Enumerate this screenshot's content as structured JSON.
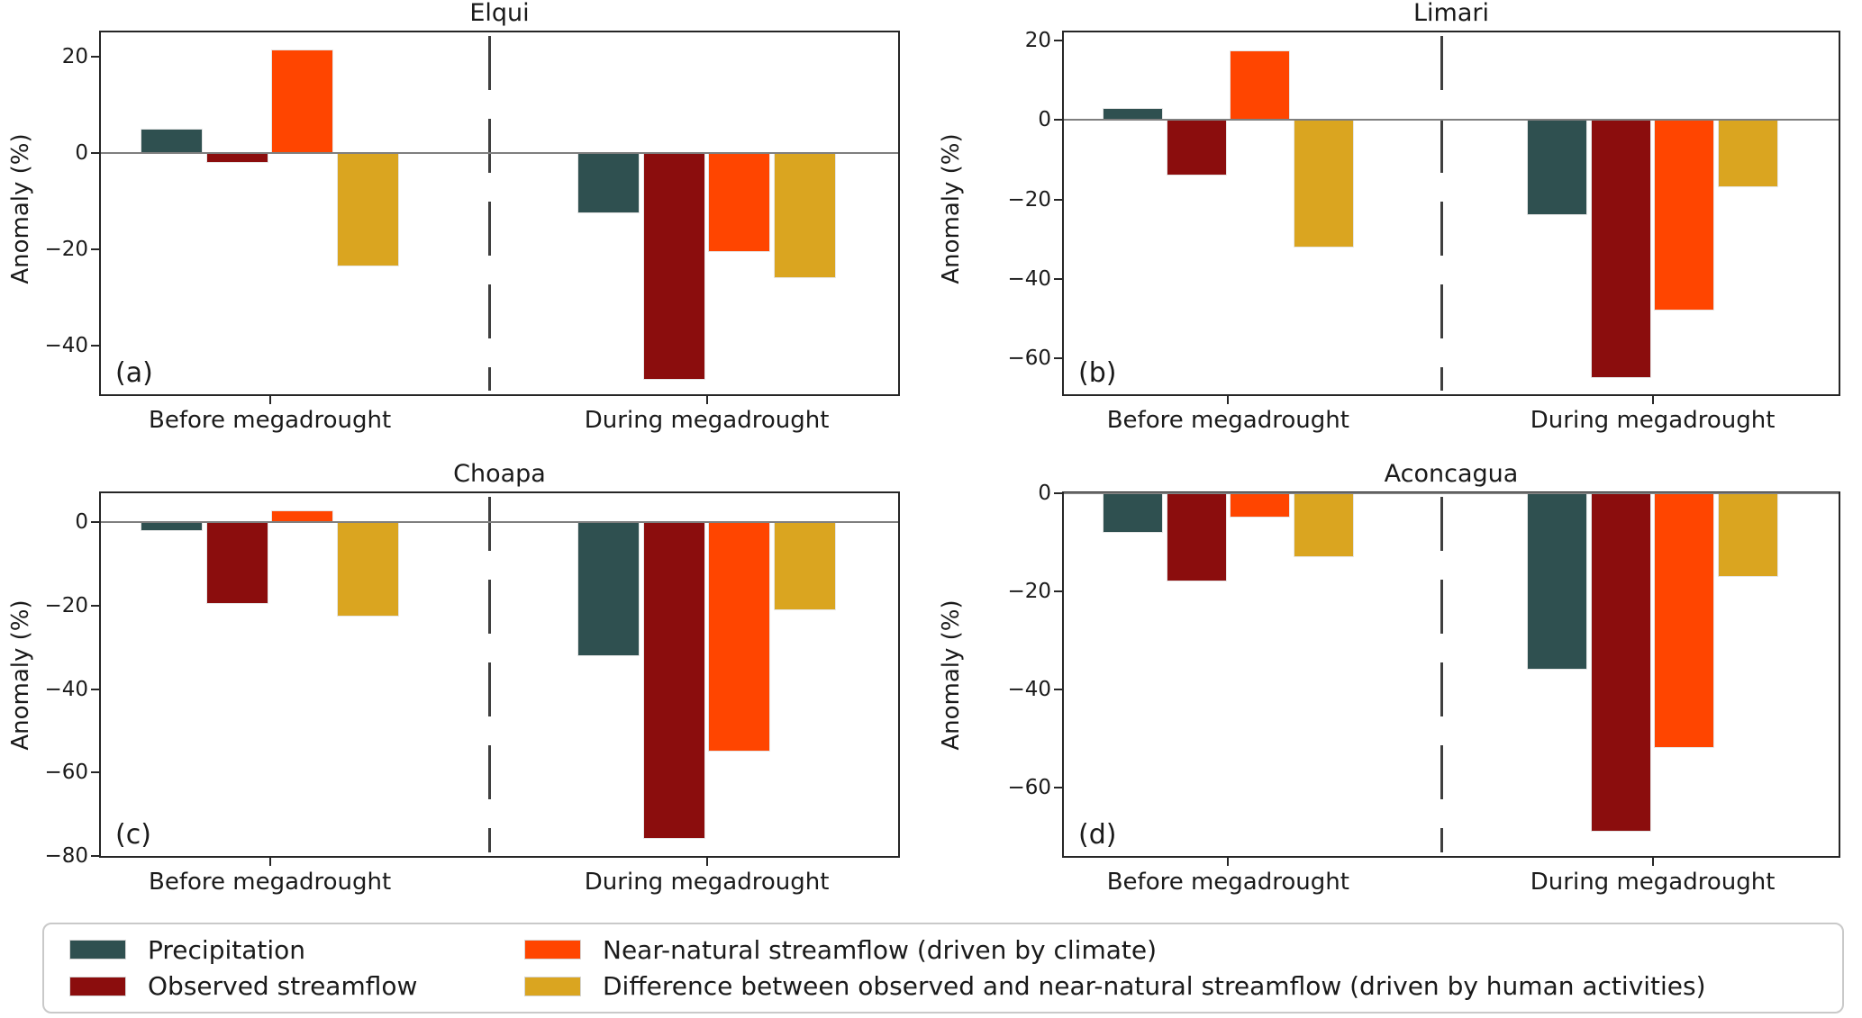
{
  "ylabel": "Anomaly (%)",
  "chart_data": [
    {
      "type": "bar",
      "label": "(a)",
      "title": "Elqui",
      "xlabel": "",
      "ylabel": "Anomaly (%)",
      "categories": [
        "Before megadrought",
        "During megadrought"
      ],
      "ylim": [
        -50,
        25
      ],
      "yticks": [
        20,
        0,
        -20,
        -40
      ],
      "grid": false,
      "legend_position": "bottom",
      "series": [
        {
          "name": "Precipitation",
          "color": "#2F5050",
          "values": [
            5,
            -12.5
          ]
        },
        {
          "name": "Observed streamflow",
          "color": "#8B0D0D",
          "values": [
            -2,
            -47
          ]
        },
        {
          "name": "Near-natural streamflow (driven by climate)",
          "color": "#FF4500",
          "values": [
            21.5,
            -20.5
          ]
        },
        {
          "name": "Difference between observed and near-natural streamflow (driven by human activities)",
          "color": "#DAA520",
          "values": [
            -23.5,
            -26
          ]
        }
      ]
    },
    {
      "type": "bar",
      "label": "(b)",
      "title": "Limari",
      "xlabel": "",
      "ylabel": "Anomaly (%)",
      "categories": [
        "Before megadrought",
        "During megadrought"
      ],
      "ylim": [
        -69,
        22
      ],
      "yticks": [
        20,
        0,
        -20,
        -40,
        -60
      ],
      "grid": false,
      "legend_position": "bottom",
      "series": [
        {
          "name": "Precipitation",
          "color": "#2F5050",
          "values": [
            3,
            -24
          ]
        },
        {
          "name": "Observed streamflow",
          "color": "#8B0D0D",
          "values": [
            -14,
            -65
          ]
        },
        {
          "name": "Near-natural streamflow (driven by climate)",
          "color": "#FF4500",
          "values": [
            17.5,
            -48
          ]
        },
        {
          "name": "Difference between observed and near-natural streamflow (driven by human activities)",
          "color": "#DAA520",
          "values": [
            -32,
            -17
          ]
        }
      ]
    },
    {
      "type": "bar",
      "label": "(c)",
      "title": "Choapa",
      "xlabel": "",
      "ylabel": "Anomaly (%)",
      "categories": [
        "Before megadrought",
        "During megadrought"
      ],
      "ylim": [
        -80,
        7
      ],
      "yticks": [
        0,
        -20,
        -40,
        -60,
        -80
      ],
      "grid": false,
      "legend_position": "bottom",
      "series": [
        {
          "name": "Precipitation",
          "color": "#2F5050",
          "values": [
            -2,
            -32
          ]
        },
        {
          "name": "Observed streamflow",
          "color": "#8B0D0D",
          "values": [
            -19.5,
            -76
          ]
        },
        {
          "name": "Near-natural streamflow (driven by climate)",
          "color": "#FF4500",
          "values": [
            3,
            -55
          ]
        },
        {
          "name": "Difference between observed and near-natural streamflow (driven by human activities)",
          "color": "#DAA520",
          "values": [
            -22.5,
            -21
          ]
        }
      ]
    },
    {
      "type": "bar",
      "label": "(d)",
      "title": "Aconcagua",
      "xlabel": "",
      "ylabel": "Anomaly (%)",
      "categories": [
        "Before megadrought",
        "During megadrought"
      ],
      "ylim": [
        -74,
        0
      ],
      "yticks": [
        0,
        -20,
        -40,
        -60
      ],
      "grid": false,
      "legend_position": "bottom",
      "series": [
        {
          "name": "Precipitation",
          "color": "#2F5050",
          "values": [
            -8,
            -36
          ]
        },
        {
          "name": "Observed streamflow",
          "color": "#8B0D0D",
          "values": [
            -18,
            -69
          ]
        },
        {
          "name": "Near-natural streamflow (driven by climate)",
          "color": "#FF4500",
          "values": [
            -5,
            -52
          ]
        },
        {
          "name": "Difference between observed and near-natural streamflow (driven by human activities)",
          "color": "#DAA520",
          "values": [
            -13,
            -17
          ]
        }
      ]
    }
  ]
}
